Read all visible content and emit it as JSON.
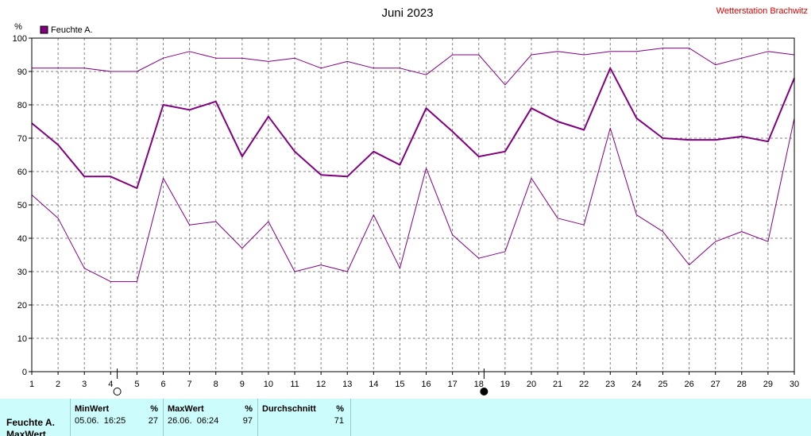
{
  "header": {
    "title": "Juni 2023",
    "station": "Wetterstation Brachwitz"
  },
  "chart_data": {
    "type": "line",
    "title": "Juni 2023",
    "ylabel": "%",
    "ylim": [
      0,
      100
    ],
    "yticks": [
      "0",
      "10",
      "20",
      "30",
      "40",
      "50",
      "60",
      "70",
      "80",
      "90",
      "100"
    ],
    "x": [
      1,
      2,
      3,
      4,
      5,
      6,
      7,
      8,
      9,
      10,
      11,
      12,
      13,
      14,
      15,
      16,
      17,
      18,
      19,
      20,
      21,
      22,
      23,
      24,
      25,
      26,
      27,
      28,
      29,
      30
    ],
    "xticks": [
      "1",
      "2",
      "3",
      "4",
      "5",
      "6",
      "7",
      "8",
      "9",
      "10",
      "11",
      "12",
      "13",
      "14",
      "15",
      "16",
      "17",
      "18",
      "19",
      "20",
      "21",
      "22",
      "23",
      "24",
      "25",
      "26",
      "27",
      "28",
      "29",
      "30"
    ],
    "grid": true,
    "legend": {
      "label": "Feuchte A.",
      "position": "top-left",
      "color": "#800080"
    },
    "series": [
      {
        "key": "max",
        "color": "#800080",
        "width": 1,
        "values": [
          91,
          91,
          91,
          90,
          90,
          94,
          96,
          94,
          94,
          93,
          94,
          91,
          93,
          91,
          91,
          89,
          95,
          95,
          86,
          95,
          96,
          95,
          96,
          96,
          97,
          97,
          92,
          94,
          96,
          95
        ]
      },
      {
        "key": "avg",
        "color": "#800080",
        "width": 2,
        "values": [
          74.5,
          68,
          58.5,
          58.5,
          55,
          80,
          78.5,
          81,
          64.5,
          76.5,
          66,
          59,
          58.5,
          66,
          62,
          79,
          72,
          64.5,
          66,
          79,
          75,
          72.5,
          91,
          76,
          70,
          69.5,
          69.5,
          70.5,
          69,
          88
        ]
      },
      {
        "key": "min",
        "color": "#800080",
        "width": 1,
        "values": [
          53,
          46,
          31,
          27,
          27,
          58,
          44,
          45,
          37,
          45,
          30,
          32,
          30,
          47,
          31,
          61,
          41,
          34,
          36,
          58,
          46,
          44,
          73,
          47,
          42,
          32,
          39,
          42,
          39,
          76
        ]
      }
    ],
    "moon_markers": [
      {
        "day": 4.25,
        "phase": "full"
      },
      {
        "day": 18.2,
        "phase": "new"
      }
    ]
  },
  "stats": {
    "minwert": {
      "label": "MinWert",
      "unit": "%",
      "time": "05.06.  16:25",
      "value": "27"
    },
    "maxwert": {
      "label": "MaxWert",
      "unit": "%",
      "time": "26.06.  06:24",
      "value": "97"
    },
    "durchschnitt": {
      "label": "Durchschnitt",
      "unit": "%",
      "value": "71"
    },
    "rows": [
      "Feuchte A.",
      "MaxWert"
    ]
  }
}
